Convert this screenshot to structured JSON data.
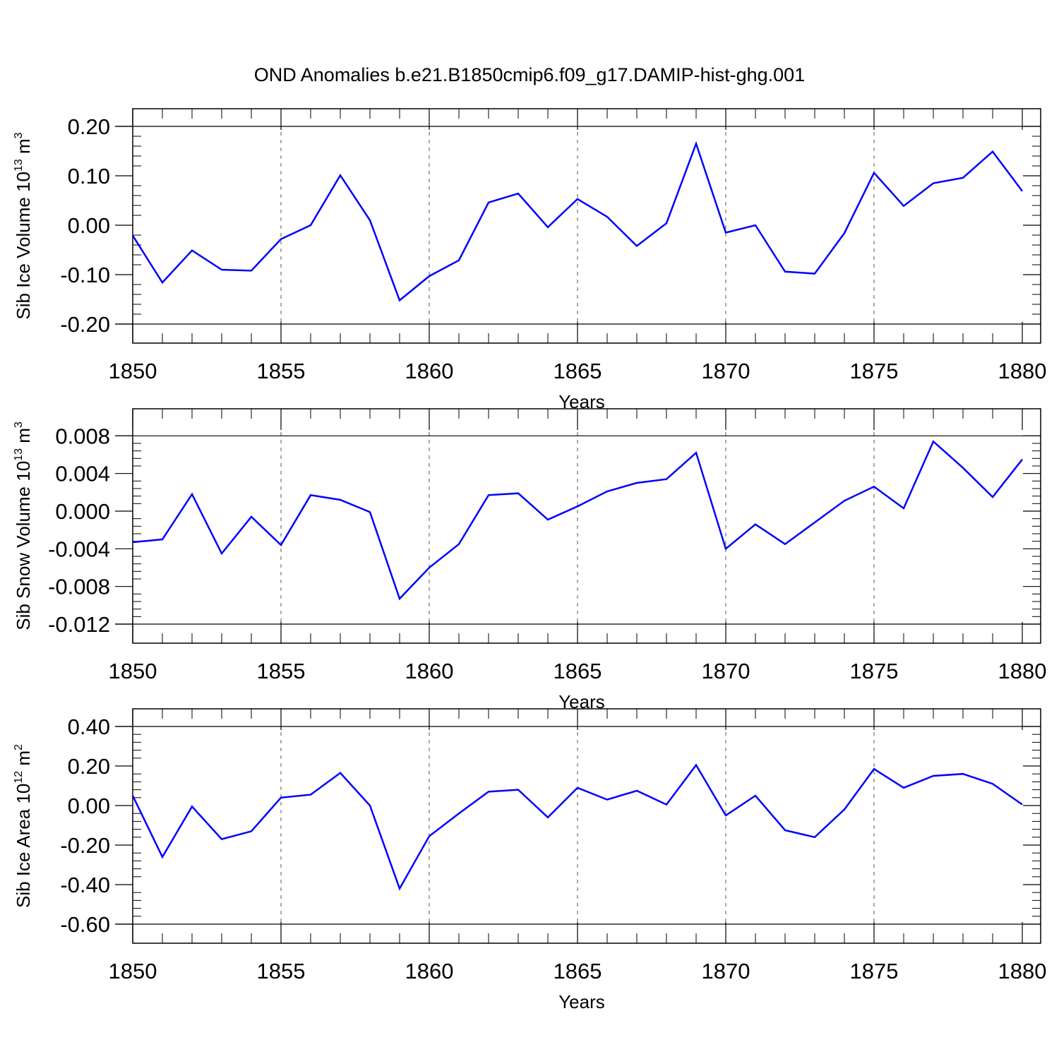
{
  "title": "OND Anomalies b.e21.B1850cmip6.f09_g17.DAMIP-hist-ghg.001",
  "line_color": "#0000ff",
  "chart_data": [
    {
      "type": "line",
      "ylabel": {
        "base": "Sib Ice Volume 10",
        "exp": "13",
        "unit": " m",
        "unit_exp": "3"
      },
      "xlabel": "Years",
      "xlim": [
        1850,
        1880
      ],
      "ylim": [
        -0.2,
        0.2
      ],
      "yticks": [
        -0.2,
        -0.1,
        0.0,
        0.1,
        0.2
      ],
      "ytick_labels": [
        "-0.20",
        "-0.10",
        "0.00",
        "0.10",
        "0.20"
      ],
      "xticks": [
        1850,
        1855,
        1860,
        1865,
        1870,
        1875,
        1880
      ],
      "xtick_labels": [
        "1850",
        "1855",
        "1860",
        "1865",
        "1870",
        "1875",
        "1880"
      ],
      "x": [
        1850,
        1851,
        1852,
        1853,
        1854,
        1855,
        1856,
        1857,
        1858,
        1859,
        1860,
        1861,
        1862,
        1863,
        1864,
        1865,
        1866,
        1867,
        1868,
        1869,
        1870,
        1871,
        1872,
        1873,
        1874,
        1875,
        1876,
        1877,
        1878,
        1879,
        1880
      ],
      "series": [
        {
          "values": [
            -0.021,
            -0.116,
            -0.051,
            -0.09,
            -0.092,
            -0.028,
            0.0,
            0.101,
            0.01,
            -0.152,
            -0.103,
            -0.071,
            0.046,
            0.064,
            -0.004,
            0.053,
            0.017,
            -0.042,
            0.004,
            0.165,
            -0.015,
            0.0,
            -0.094,
            -0.098,
            -0.016,
            0.106,
            0.039,
            0.085,
            0.096,
            0.149,
            0.069
          ]
        }
      ]
    },
    {
      "type": "line",
      "ylabel": {
        "base": "Sib Snow Volume 10",
        "exp": "13",
        "unit": " m",
        "unit_exp": "3"
      },
      "xlabel": "Years",
      "xlim": [
        1850,
        1880
      ],
      "ylim": [
        -0.012,
        0.009
      ],
      "yticks": [
        -0.012,
        -0.008,
        -0.004,
        0.0,
        0.004,
        0.008
      ],
      "ytick_labels": [
        "-0.012",
        "-0.008",
        "-0.004",
        "0.000",
        "0.004",
        "0.008"
      ],
      "xticks": [
        1850,
        1855,
        1860,
        1865,
        1870,
        1875,
        1880
      ],
      "xtick_labels": [
        "1850",
        "1855",
        "1860",
        "1865",
        "1870",
        "1875",
        "1880"
      ],
      "x": [
        1850,
        1851,
        1852,
        1853,
        1854,
        1855,
        1856,
        1857,
        1858,
        1859,
        1860,
        1861,
        1862,
        1863,
        1864,
        1865,
        1866,
        1867,
        1868,
        1869,
        1870,
        1871,
        1872,
        1873,
        1874,
        1875,
        1876,
        1877,
        1878,
        1879,
        1880
      ],
      "series": [
        {
          "values": [
            -0.0033,
            -0.003,
            0.0018,
            -0.0045,
            -0.0006,
            -0.0036,
            0.0017,
            0.0012,
            -0.0001,
            -0.0093,
            -0.006,
            -0.0035,
            0.0017,
            0.0019,
            -0.0009,
            0.0005,
            0.0021,
            0.003,
            0.0034,
            0.0062,
            -0.004,
            -0.0014,
            -0.0035,
            -0.0012,
            0.0011,
            0.0026,
            0.0003,
            0.0074,
            0.0046,
            0.0015,
            0.0055
          ]
        }
      ]
    },
    {
      "type": "line",
      "ylabel": {
        "base": "Sib Ice Area 10",
        "exp": "12",
        "unit": " m",
        "unit_exp": "2"
      },
      "xlabel": "Years",
      "xlim": [
        1850,
        1880
      ],
      "ylim": [
        -0.6,
        0.4
      ],
      "yticks": [
        -0.6,
        -0.4,
        -0.2,
        0.0,
        0.2,
        0.4
      ],
      "ytick_labels": [
        "-0.60",
        "-0.40",
        "-0.20",
        "0.00",
        "0.20",
        "0.40"
      ],
      "xticks": [
        1850,
        1855,
        1860,
        1865,
        1870,
        1875,
        1880
      ],
      "xtick_labels": [
        "1850",
        "1855",
        "1860",
        "1865",
        "1870",
        "1875",
        "1880"
      ],
      "x": [
        1850,
        1851,
        1852,
        1853,
        1854,
        1855,
        1856,
        1857,
        1858,
        1859,
        1860,
        1861,
        1862,
        1863,
        1864,
        1865,
        1866,
        1867,
        1868,
        1869,
        1870,
        1871,
        1872,
        1873,
        1874,
        1875,
        1876,
        1877,
        1878,
        1879,
        1880
      ],
      "series": [
        {
          "values": [
            0.05,
            -0.26,
            -0.005,
            -0.17,
            -0.13,
            0.04,
            0.055,
            0.165,
            0.0,
            -0.42,
            -0.155,
            -0.04,
            0.07,
            0.08,
            -0.06,
            0.09,
            0.03,
            0.075,
            0.005,
            0.205,
            -0.05,
            0.05,
            -0.125,
            -0.16,
            -0.02,
            0.185,
            0.09,
            0.15,
            0.16,
            0.11,
            0.005
          ]
        }
      ]
    }
  ]
}
